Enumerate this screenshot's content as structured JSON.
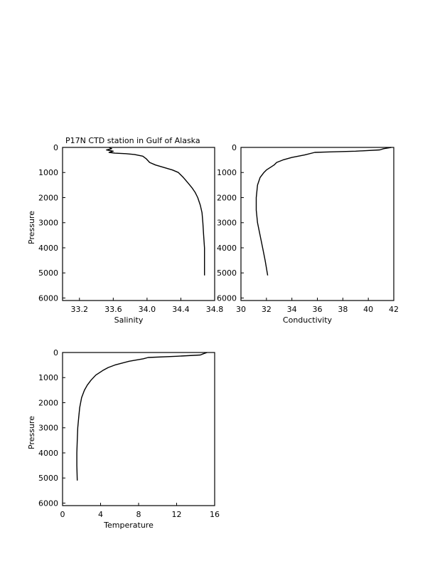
{
  "title": "P17N CTD station in Gulf of Alaska",
  "chart_data": [
    {
      "type": "line",
      "title": "P17N CTD station in Gulf of Alaska",
      "xlabel": "Salinity",
      "ylabel": "Pressure",
      "xlim": [
        33.0,
        34.8
      ],
      "ylim": [
        6100,
        0
      ],
      "xticks": [
        "33.2",
        "33.6",
        "34.0",
        "34.4",
        "34.8"
      ],
      "xtick_values": [
        33.2,
        33.6,
        34.0,
        34.4,
        34.8
      ],
      "yticks": [
        "0",
        "1000",
        "2000",
        "3000",
        "4000",
        "5000",
        "6000"
      ],
      "ytick_values": [
        0,
        1000,
        2000,
        3000,
        4000,
        5000,
        6000
      ],
      "grid": false,
      "series": [
        {
          "x": [
            33.55,
            33.58,
            33.52,
            33.6,
            33.55,
            33.62,
            33.75,
            33.85,
            33.95,
            33.99,
            34.03,
            34.1,
            34.2,
            34.3,
            34.37,
            34.43,
            34.48,
            34.53,
            34.57,
            34.6,
            34.63,
            34.65,
            34.66,
            34.67,
            34.68,
            34.68,
            34.68
          ],
          "y": [
            0,
            50,
            100,
            150,
            200,
            230,
            250,
            280,
            350,
            450,
            600,
            700,
            800,
            900,
            1000,
            1200,
            1400,
            1600,
            1800,
            2000,
            2300,
            2600,
            3000,
            3500,
            4000,
            4500,
            5100
          ]
        }
      ]
    },
    {
      "type": "line",
      "xlabel": "Conductivity",
      "ylabel": "",
      "xlim": [
        30,
        42
      ],
      "ylim": [
        6100,
        0
      ],
      "xticks": [
        "30",
        "32",
        "34",
        "36",
        "38",
        "40",
        "42"
      ],
      "xtick_values": [
        30,
        32,
        34,
        36,
        38,
        40,
        42
      ],
      "yticks": [
        "0",
        "1000",
        "2000",
        "3000",
        "4000",
        "5000",
        "6000"
      ],
      "ytick_values": [
        0,
        1000,
        2000,
        3000,
        4000,
        5000,
        6000
      ],
      "grid": false,
      "series": [
        {
          "x": [
            41.8,
            41.2,
            40.9,
            39.0,
            37.0,
            35.8,
            35.0,
            34.0,
            33.3,
            32.8,
            32.6,
            32.3,
            32.0,
            31.8,
            31.5,
            31.3,
            31.2,
            31.2,
            31.3,
            31.5,
            31.7,
            31.9,
            32.1
          ],
          "y": [
            0,
            50,
            100,
            150,
            180,
            200,
            300,
            400,
            500,
            600,
            700,
            800,
            900,
            1000,
            1200,
            1500,
            2000,
            2500,
            3000,
            3500,
            4000,
            4500,
            5100
          ]
        }
      ]
    },
    {
      "type": "line",
      "xlabel": "Temperature",
      "ylabel": "Pressure",
      "xlim": [
        0,
        16
      ],
      "ylim": [
        6100,
        0
      ],
      "xticks": [
        "0",
        "4",
        "8",
        "12",
        "16"
      ],
      "xtick_values": [
        0,
        4,
        8,
        12,
        16
      ],
      "yticks": [
        "0",
        "1000",
        "2000",
        "3000",
        "4000",
        "5000",
        "6000"
      ],
      "ytick_values": [
        0,
        1000,
        2000,
        3000,
        4000,
        5000,
        6000
      ],
      "grid": false,
      "series": [
        {
          "x": [
            15.2,
            14.8,
            14.5,
            12.0,
            9.0,
            8.5,
            7.0,
            5.5,
            4.8,
            4.3,
            3.9,
            3.5,
            3.0,
            2.6,
            2.3,
            2.0,
            1.8,
            1.7,
            1.6,
            1.55,
            1.5,
            1.5,
            1.55
          ],
          "y": [
            0,
            50,
            100,
            150,
            200,
            250,
            350,
            500,
            600,
            700,
            800,
            900,
            1100,
            1300,
            1500,
            1800,
            2200,
            2600,
            3000,
            3500,
            4000,
            4500,
            5100
          ]
        }
      ]
    }
  ]
}
